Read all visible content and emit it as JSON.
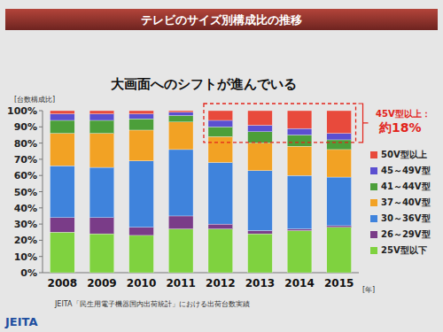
{
  "chart_data": {
    "type": "bar",
    "title": "テレビのサイズ別構成比の推移",
    "subtitle": "大画面へのシフトが進んでいる",
    "y_axis_label": "[台数構成比]",
    "x_axis_label": "[年]",
    "stacked": true,
    "grid": false,
    "legend": "right",
    "categories": [
      "2008",
      "2009",
      "2010",
      "2011",
      "2012",
      "2013",
      "2014",
      "2015"
    ],
    "series": [
      {
        "name": "25V型以下",
        "color": "#7fd23f",
        "values": [
          25,
          24,
          23,
          27,
          27,
          24,
          26,
          28
        ]
      },
      {
        "name": "26～29V型",
        "color": "#7a3c88",
        "values": [
          9,
          10,
          5,
          8,
          3,
          2,
          1,
          1
        ]
      },
      {
        "name": "30～36V型",
        "color": "#3f83dc",
        "values": [
          32,
          31,
          41,
          41,
          38,
          37,
          33,
          30
        ]
      },
      {
        "name": "37～40V型",
        "color": "#f2a224",
        "values": [
          20,
          21,
          19,
          17,
          16,
          17,
          18,
          17
        ]
      },
      {
        "name": "41～44V型",
        "color": "#4c9f3a",
        "values": [
          8,
          8,
          7,
          4,
          6,
          7,
          7,
          6
        ]
      },
      {
        "name": "45～49V型",
        "color": "#5b4fd0",
        "values": [
          4,
          4,
          3,
          2,
          4,
          4,
          4,
          4
        ]
      },
      {
        "name": "50V型以上",
        "color": "#e84a3c",
        "values": [
          2,
          2,
          2,
          1,
          6,
          9,
          11,
          14
        ]
      }
    ],
    "ylim": [
      0,
      100
    ],
    "yticks": [
      {
        "value": 0,
        "label": "0%"
      },
      {
        "value": 10,
        "label": "10%"
      },
      {
        "value": 20,
        "label": "20%"
      },
      {
        "value": 30,
        "label": "30%"
      },
      {
        "value": 40,
        "label": "40%"
      },
      {
        "value": 50,
        "label": "50%"
      },
      {
        "value": 60,
        "label": "60%"
      },
      {
        "value": 70,
        "label": "70%"
      },
      {
        "value": 80,
        "label": "80%"
      },
      {
        "value": 90,
        "label": "90%"
      },
      {
        "value": 100,
        "label": "100%"
      }
    ],
    "annotations": [
      {
        "text": "45V型以上：約18%",
        "color": "#e2231a"
      }
    ],
    "source": "JEITA「民生用電子機器国内出荷統計」における出荷台数実績",
    "logo": "JEITA"
  }
}
